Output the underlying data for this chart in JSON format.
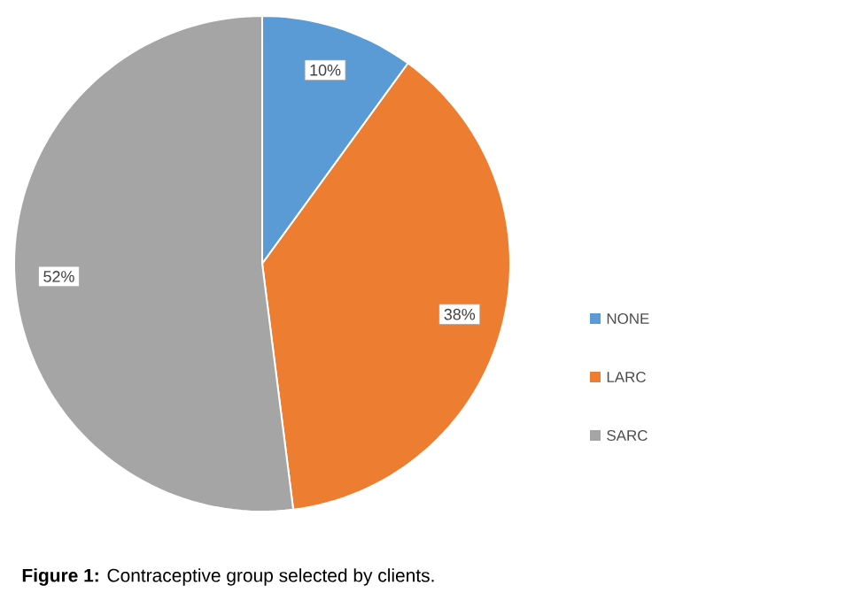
{
  "chart_data": {
    "type": "pie",
    "categories": [
      "NONE",
      "LARC",
      "SARC"
    ],
    "values": [
      10,
      38,
      52
    ],
    "value_labels": [
      "10%",
      "38%",
      "52%"
    ],
    "colors": [
      "#5b9bd5",
      "#ed7d31",
      "#a5a5a5"
    ],
    "legend": "right",
    "annotations": [
      "**Figure 1:** Contraceptive group selected by clients."
    ]
  }
}
